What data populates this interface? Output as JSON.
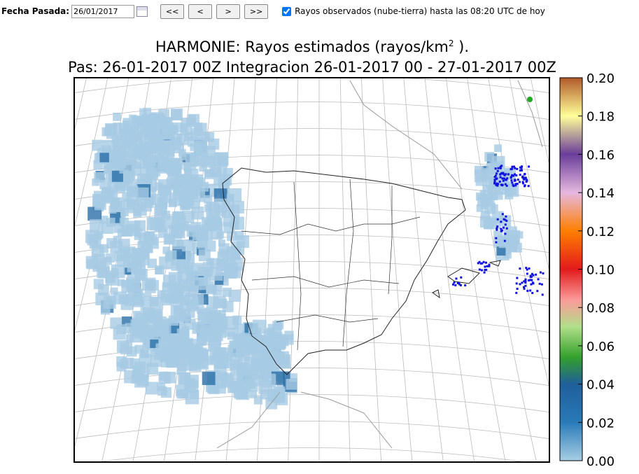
{
  "toolbar": {
    "date_label": "Fecha Pasada:",
    "date_value": "26/01/2017",
    "buttons": [
      "<<",
      "<",
      ">",
      ">>"
    ],
    "checkbox_label": "Rayos observados (nube-tierra) hasta las 08:20 UTC de hoy"
  },
  "map": {
    "title": "HARMONIE: Rayos estimados  (rayos/km",
    "title_superscript": "2",
    "title_end": " ).",
    "subtitle": "Pas: 26-01-2017 00Z Integracion 26-01-2017 00 - 27-01-2017 00Z",
    "colorbar": {
      "lim": [
        0,
        0.2
      ],
      "ticks": [
        {
          "value": 0,
          "label": "0.00"
        },
        {
          "value": 0.02,
          "label": "0.02"
        },
        {
          "value": 0.04,
          "label": "0.04"
        },
        {
          "value": 0.06,
          "label": "0.06"
        },
        {
          "value": 0.08,
          "label": "0.08"
        },
        {
          "value": 0.1,
          "label": "0.10"
        },
        {
          "value": 0.12,
          "label": "0.12"
        },
        {
          "value": 0.14,
          "label": "0.14"
        },
        {
          "value": 0.16,
          "label": "0.16"
        },
        {
          "value": 0.18,
          "label": "0.18"
        },
        {
          "value": 0.2,
          "label": "0.20"
        }
      ]
    }
  }
}
